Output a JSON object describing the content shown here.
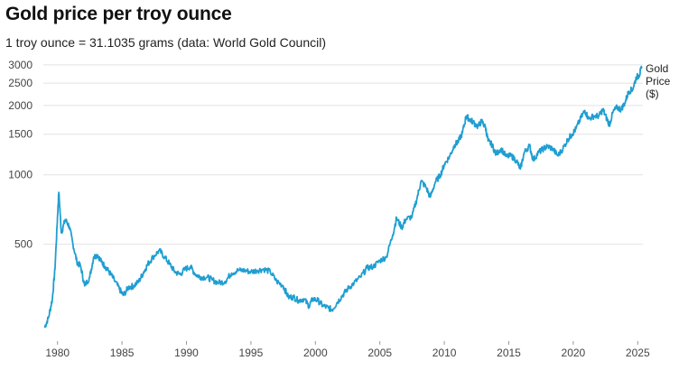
{
  "chart_data": {
    "type": "line",
    "title": "Gold price per troy ounce",
    "subtitle": "1 troy ounce = 31.1035 grams (data: World Gold Council)",
    "xlabel": "",
    "ylabel": "",
    "y_scale": "log",
    "ylim": [
      190,
      3050
    ],
    "xlim": [
      1978.9,
      2025.4
    ],
    "y_ticks": [
      500,
      1000,
      1500,
      2000,
      2500,
      3000
    ],
    "x_ticks": [
      1980,
      1985,
      1990,
      1995,
      2000,
      2005,
      2010,
      2015,
      2020,
      2025
    ],
    "grid": "horizontal",
    "series": [
      {
        "name": "Gold Price ($)",
        "legend_lines": [
          "Gold",
          "Price",
          "($)"
        ],
        "color": "#1f9ed1",
        "x": [
          1979.0,
          1979.3,
          1979.6,
          1979.8,
          1980.0,
          1980.1,
          1980.3,
          1980.6,
          1980.9,
          1981.2,
          1981.5,
          1981.8,
          1982.1,
          1982.5,
          1982.8,
          1983.1,
          1983.4,
          1983.7,
          1984.0,
          1984.4,
          1984.8,
          1985.1,
          1985.5,
          1985.9,
          1986.3,
          1986.7,
          1987.0,
          1987.4,
          1987.9,
          1988.3,
          1988.7,
          1989.1,
          1989.5,
          1989.9,
          1990.3,
          1990.7,
          1991.1,
          1991.6,
          1992.0,
          1992.5,
          1993.0,
          1993.5,
          1994.0,
          1994.5,
          1995.0,
          1995.5,
          1996.0,
          1996.5,
          1997.0,
          1997.5,
          1997.9,
          1998.3,
          1998.7,
          1999.1,
          1999.5,
          1999.8,
          2000.2,
          2000.6,
          2001.0,
          2001.3,
          2001.7,
          2002.1,
          2002.5,
          2003.0,
          2003.5,
          2004.0,
          2004.5,
          2005.0,
          2005.5,
          2006.0,
          2006.3,
          2006.7,
          2007.0,
          2007.5,
          2007.9,
          2008.2,
          2008.6,
          2008.9,
          2009.3,
          2009.7,
          2010.0,
          2010.4,
          2010.8,
          2011.1,
          2011.4,
          2011.7,
          2011.9,
          2012.2,
          2012.6,
          2012.9,
          2013.2,
          2013.4,
          2013.7,
          2014.0,
          2014.4,
          2014.8,
          2015.2,
          2015.6,
          2015.9,
          2016.2,
          2016.6,
          2016.9,
          2017.3,
          2017.7,
          2018.0,
          2018.4,
          2018.8,
          2019.2,
          2019.6,
          2019.9,
          2020.2,
          2020.6,
          2020.9,
          2021.2,
          2021.6,
          2022.0,
          2022.3,
          2022.6,
          2022.8,
          2023.1,
          2023.4,
          2023.7,
          2024.0,
          2024.3,
          2024.6,
          2024.9,
          2025.1,
          2025.3
        ],
        "values": [
          218,
          240,
          290,
          390,
          660,
          840,
          560,
          640,
          600,
          500,
          420,
          400,
          330,
          360,
          440,
          450,
          420,
          400,
          380,
          350,
          320,
          300,
          325,
          330,
          345,
          380,
          410,
          440,
          470,
          440,
          410,
          380,
          370,
          390,
          400,
          370,
          360,
          360,
          350,
          340,
          345,
          375,
          385,
          385,
          380,
          385,
          390,
          380,
          345,
          330,
          295,
          295,
          285,
          290,
          270,
          290,
          285,
          270,
          265,
          260,
          280,
          300,
          320,
          340,
          360,
          395,
          400,
          425,
          440,
          550,
          650,
          590,
          640,
          660,
          800,
          940,
          880,
          800,
          930,
          1000,
          1110,
          1200,
          1350,
          1400,
          1520,
          1800,
          1750,
          1700,
          1620,
          1710,
          1600,
          1400,
          1350,
          1230,
          1300,
          1200,
          1210,
          1150,
          1060,
          1250,
          1340,
          1160,
          1250,
          1300,
          1330,
          1300,
          1210,
          1300,
          1430,
          1500,
          1580,
          1770,
          1900,
          1750,
          1800,
          1800,
          1920,
          1750,
          1650,
          1880,
          1960,
          1920,
          2050,
          2300,
          2350,
          2650,
          2700,
          2900
        ]
      }
    ]
  }
}
